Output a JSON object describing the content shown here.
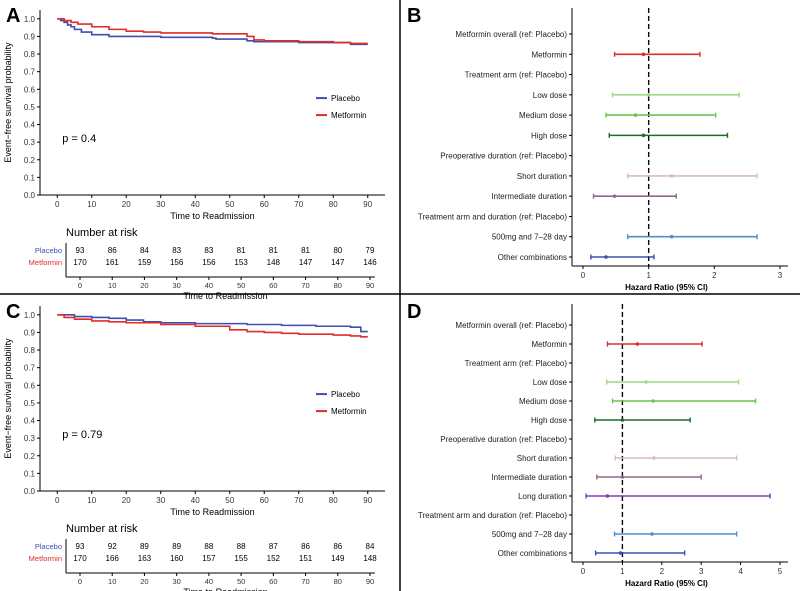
{
  "colors": {
    "placebo": "#3b4fb0",
    "metformin": "#e02b2b",
    "axis": "#000000",
    "divider": "#000000",
    "refline": "#000000"
  },
  "chart_data": [
    {
      "panel": "A",
      "type": "line",
      "chart_kind": "kaplan-meier",
      "ylabel": "Event−free survival probability",
      "xlabel": "Time to Readmission",
      "xlim": [
        -5,
        95
      ],
      "ylim": [
        0,
        1.05
      ],
      "xticks": [
        "0",
        "10",
        "20",
        "30",
        "40",
        "50",
        "60",
        "70",
        "80",
        "90"
      ],
      "yticks": [
        "0.0",
        "0.1",
        "0.2",
        "0.3",
        "0.4",
        "0.5",
        "0.6",
        "0.7",
        "0.8",
        "0.9",
        "1.0"
      ],
      "pvalue": "p = 0.4",
      "legend": {
        "position": "right",
        "items": [
          {
            "label": "Placebo",
            "color": "#3b4fb0"
          },
          {
            "label": "Metformin",
            "color": "#e02b2b"
          }
        ]
      },
      "series": [
        {
          "name": "Placebo",
          "color": "#3b4fb0",
          "x": [
            0,
            1,
            2,
            3,
            4,
            5,
            7,
            10,
            15,
            30,
            45,
            46,
            55,
            57,
            70,
            85,
            90
          ],
          "y": [
            1.0,
            0.99,
            0.98,
            0.965,
            0.955,
            0.94,
            0.925,
            0.91,
            0.9,
            0.895,
            0.89,
            0.885,
            0.875,
            0.87,
            0.865,
            0.855,
            0.855
          ]
        },
        {
          "name": "Metformin",
          "color": "#e02b2b",
          "x": [
            0,
            2,
            4,
            6,
            10,
            15,
            20,
            25,
            30,
            45,
            55,
            57,
            60,
            70,
            80,
            85,
            90
          ],
          "y": [
            1.0,
            0.99,
            0.98,
            0.97,
            0.955,
            0.94,
            0.93,
            0.925,
            0.92,
            0.915,
            0.9,
            0.88,
            0.875,
            0.87,
            0.865,
            0.86,
            0.86
          ]
        }
      ],
      "risk_table": {
        "title": "Number at risk",
        "xlabel": "Time to Readmission",
        "times": [
          "0",
          "10",
          "20",
          "30",
          "40",
          "50",
          "60",
          "70",
          "80",
          "90"
        ],
        "rows": [
          {
            "label": "Placebo",
            "color": "#3b4fb0",
            "values": [
              "93",
              "86",
              "84",
              "83",
              "83",
              "81",
              "81",
              "81",
              "80",
              "79"
            ]
          },
          {
            "label": "Metformin",
            "color": "#e02b2b",
            "values": [
              "170",
              "161",
              "159",
              "156",
              "156",
              "153",
              "148",
              "147",
              "147",
              "146"
            ]
          }
        ]
      }
    },
    {
      "panel": "B",
      "type": "forest",
      "xlabel": "Hazard Ratio (95% CI)",
      "xlim": [
        0,
        3
      ],
      "xticks": [
        0,
        1,
        2,
        3
      ],
      "refline": 1,
      "rows": [
        {
          "label": "Metformin overall (ref: Placebo)",
          "header": true
        },
        {
          "label": "Metformin",
          "est": 0.92,
          "lo": 0.48,
          "hi": 1.78,
          "color": "#e02b2b"
        },
        {
          "label": "Treatment arm (ref: Placebo)",
          "header": true
        },
        {
          "label": "Low dose",
          "est": 1.0,
          "lo": 0.45,
          "hi": 2.38,
          "color": "#9ed98a"
        },
        {
          "label": "Medium dose",
          "est": 0.8,
          "lo": 0.35,
          "hi": 2.02,
          "color": "#6cc451"
        },
        {
          "label": "High dose",
          "est": 0.92,
          "lo": 0.4,
          "hi": 2.2,
          "color": "#1f6b2a"
        },
        {
          "label": "Preoperative duration (ref: Placebo)",
          "header": true
        },
        {
          "label": "Short duration",
          "est": 1.35,
          "lo": 0.68,
          "hi": 2.65,
          "color": "#d9b8cf"
        },
        {
          "label": "Intermediate duration",
          "est": 0.48,
          "lo": 0.16,
          "hi": 1.42,
          "color": "#8a6d8a"
        },
        {
          "label": "Treatment arm and duration (ref: Placebo)",
          "header": true
        },
        {
          "label": "500mg and 7–28 day",
          "est": 1.35,
          "lo": 0.68,
          "hi": 2.65,
          "color": "#4f8fd1"
        },
        {
          "label": "Other combinations",
          "est": 0.35,
          "lo": 0.12,
          "hi": 1.08,
          "color": "#3d4fb0"
        }
      ]
    },
    {
      "panel": "C",
      "type": "line",
      "chart_kind": "kaplan-meier",
      "ylabel": "Event−free survival probability",
      "xlabel": "Time to Readmission",
      "xlim": [
        -5,
        95
      ],
      "ylim": [
        0,
        1.05
      ],
      "xticks": [
        "0",
        "10",
        "20",
        "30",
        "40",
        "50",
        "60",
        "70",
        "80",
        "90"
      ],
      "yticks": [
        "0.0",
        "0.1",
        "0.2",
        "0.3",
        "0.4",
        "0.5",
        "0.6",
        "0.7",
        "0.8",
        "0.9",
        "1.0"
      ],
      "pvalue": "p = 0.79",
      "legend": {
        "position": "right",
        "items": [
          {
            "label": "Placebo",
            "color": "#3b4fb0"
          },
          {
            "label": "Metformin",
            "color": "#e02b2b"
          }
        ]
      },
      "series": [
        {
          "name": "Placebo",
          "color": "#3b4fb0",
          "x": [
            0,
            5,
            10,
            15,
            20,
            25,
            30,
            40,
            55,
            65,
            75,
            85,
            88,
            90
          ],
          "y": [
            1.0,
            0.99,
            0.985,
            0.98,
            0.97,
            0.96,
            0.955,
            0.95,
            0.945,
            0.94,
            0.935,
            0.93,
            0.905,
            0.905
          ]
        },
        {
          "name": "Metformin",
          "color": "#e02b2b",
          "x": [
            0,
            2,
            5,
            10,
            15,
            20,
            30,
            40,
            50,
            55,
            60,
            65,
            70,
            80,
            85,
            88,
            90
          ],
          "y": [
            1.0,
            0.985,
            0.975,
            0.965,
            0.96,
            0.955,
            0.945,
            0.935,
            0.915,
            0.905,
            0.9,
            0.895,
            0.89,
            0.885,
            0.88,
            0.875,
            0.875
          ]
        }
      ],
      "risk_table": {
        "title": "Number at risk",
        "xlabel": "Time to Readmission",
        "times": [
          "0",
          "10",
          "20",
          "30",
          "40",
          "50",
          "60",
          "70",
          "80",
          "90"
        ],
        "rows": [
          {
            "label": "Placebo",
            "color": "#3b4fb0",
            "values": [
              "93",
              "92",
              "89",
              "89",
              "88",
              "88",
              "87",
              "86",
              "86",
              "84"
            ]
          },
          {
            "label": "Metformin",
            "color": "#e02b2b",
            "values": [
              "170",
              "166",
              "163",
              "160",
              "157",
              "155",
              "152",
              "151",
              "149",
              "148"
            ]
          }
        ]
      }
    },
    {
      "panel": "D",
      "type": "forest",
      "xlabel": "Hazard Ratio (95% CI)",
      "xlim": [
        0,
        5
      ],
      "xticks": [
        0,
        1,
        2,
        3,
        4,
        5
      ],
      "refline": 1,
      "rows": [
        {
          "label": "Metformin overall (ref: Placebo)",
          "header": true
        },
        {
          "label": "Metformin",
          "est": 1.38,
          "lo": 0.62,
          "hi": 3.02,
          "color": "#e02b2b"
        },
        {
          "label": "Treatment arm (ref: Placebo)",
          "header": true
        },
        {
          "label": "Low dose",
          "est": 1.6,
          "lo": 0.6,
          "hi": 3.95,
          "color": "#9ed98a"
        },
        {
          "label": "Medium dose",
          "est": 1.78,
          "lo": 0.75,
          "hi": 4.38,
          "color": "#6cc451"
        },
        {
          "label": "High dose",
          "est": 1.0,
          "lo": 0.3,
          "hi": 2.72,
          "color": "#1f6b2a"
        },
        {
          "label": "Preoperative duration (ref: Placebo)",
          "header": true
        },
        {
          "label": "Short duration",
          "est": 1.8,
          "lo": 0.82,
          "hi": 3.9,
          "color": "#d9b8cf"
        },
        {
          "label": "Intermediate duration",
          "est": 1.0,
          "lo": 0.35,
          "hi": 3.0,
          "color": "#8a6d8a"
        },
        {
          "label": "Long duration",
          "est": 0.62,
          "lo": 0.08,
          "hi": 4.75,
          "color": "#7b3fb0"
        },
        {
          "label": "Treatment arm and duration (ref: Placebo)",
          "header": true
        },
        {
          "label": "500mg and 7–28 day",
          "est": 1.75,
          "lo": 0.8,
          "hi": 3.9,
          "color": "#4f8fd1"
        },
        {
          "label": "Other combinations",
          "est": 0.95,
          "lo": 0.32,
          "hi": 2.58,
          "color": "#3d4fb0"
        }
      ]
    }
  ]
}
